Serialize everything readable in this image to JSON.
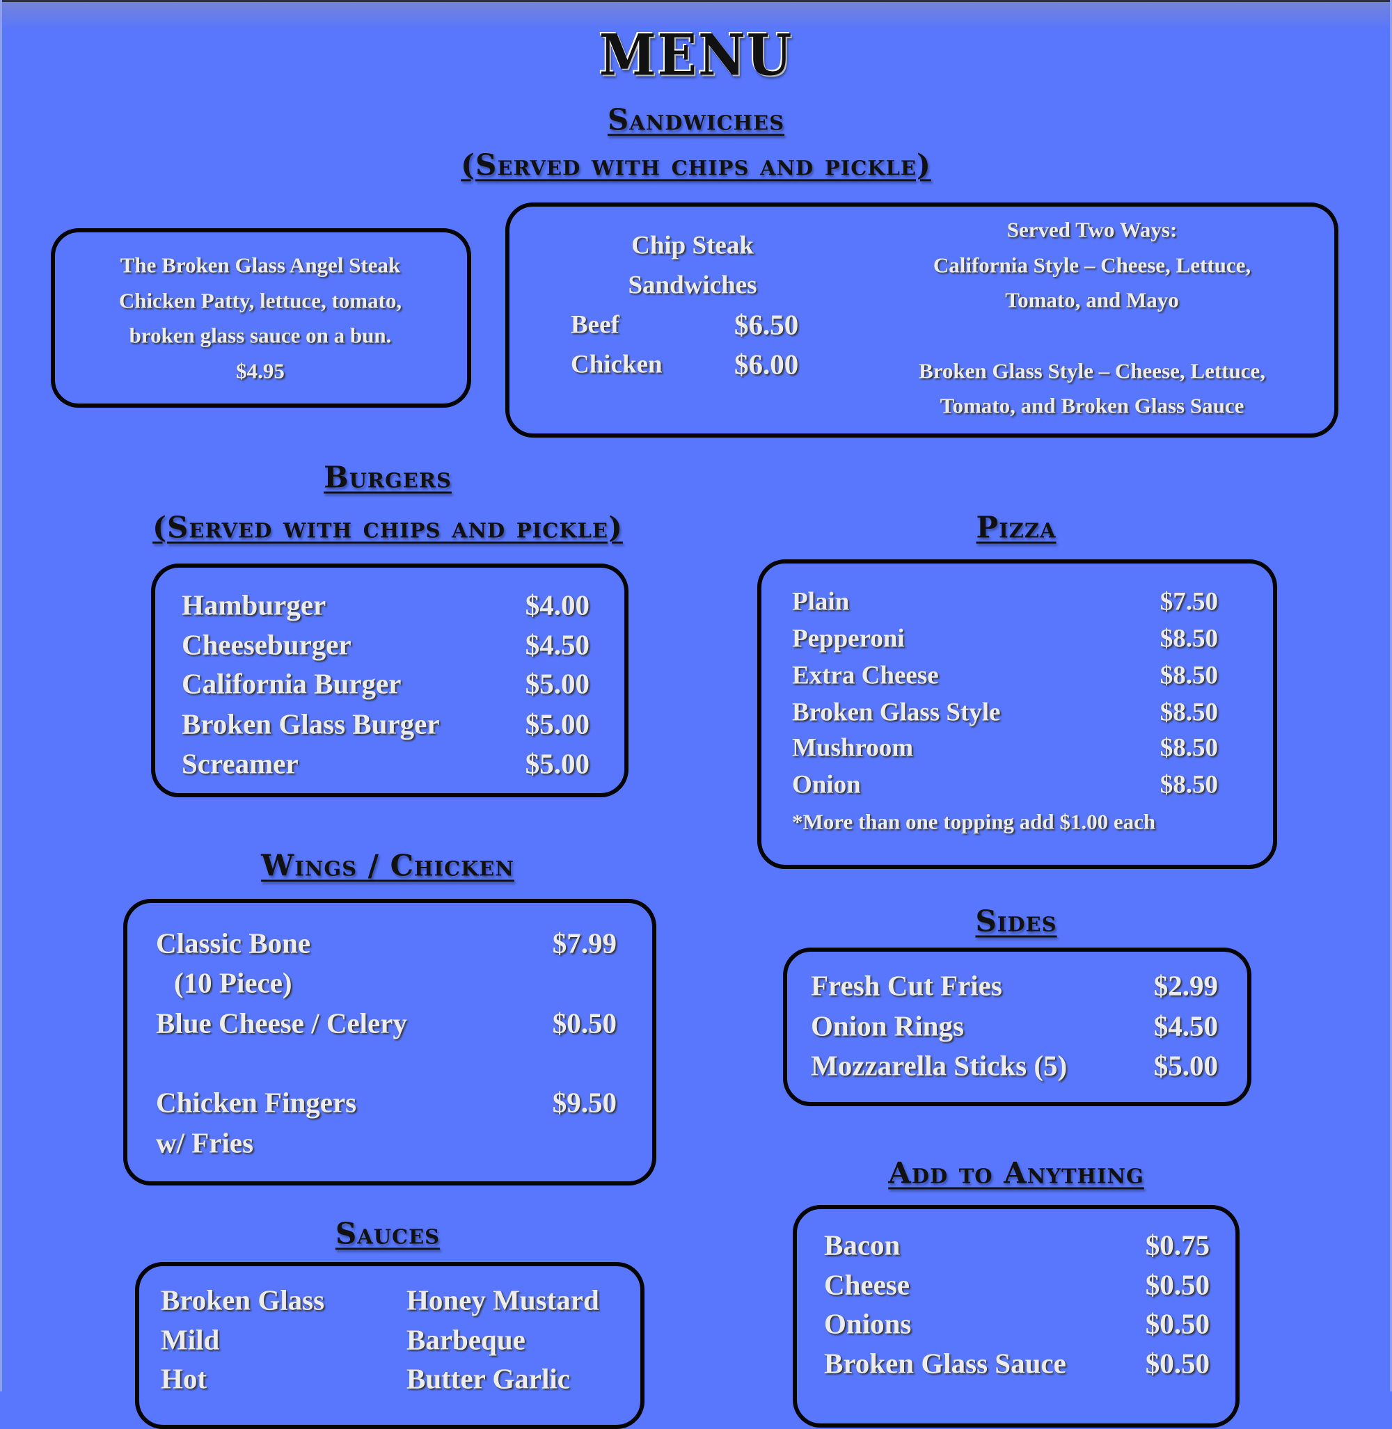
{
  "title": "MENU",
  "sandwiches": {
    "heading": "Sandwiches",
    "subheading": "(Served with chips and pickle)",
    "angel": [
      "The Broken Glass Angel Steak",
      "Chicken Patty, lettuce, tomato,",
      "broken glass sauce on a bun.",
      "$4.95"
    ],
    "chip_steak": {
      "title1": "Chip Steak",
      "title2": "Sandwiches",
      "items": [
        {
          "name": "Beef",
          "price": "$6.50"
        },
        {
          "name": "Chicken",
          "price": "$6.00"
        }
      ],
      "ways": [
        "Served Two Ways:",
        "California Style – Cheese, Lettuce,",
        "Tomato, and Mayo",
        "Broken Glass Style – Cheese, Lettuce,",
        "Tomato, and Broken Glass Sauce"
      ]
    }
  },
  "burgers": {
    "heading": "Burgers",
    "subheading": "(Served with chips and pickle)",
    "items": [
      {
        "name": "Hamburger",
        "price": "$4.00"
      },
      {
        "name": "Cheeseburger",
        "price": "$4.50"
      },
      {
        "name": "California Burger",
        "price": "$5.00"
      },
      {
        "name": "Broken Glass Burger",
        "price": "$5.00"
      },
      {
        "name": "Screamer",
        "price": "$5.00"
      }
    ]
  },
  "pizza": {
    "heading": "Pizza",
    "items": [
      {
        "name": "Plain",
        "price": "$7.50"
      },
      {
        "name": "Pepperoni",
        "price": "$8.50"
      },
      {
        "name": "Extra Cheese",
        "price": "$8.50"
      },
      {
        "name": "Broken Glass Style",
        "price": "$8.50"
      },
      {
        "name": "Mushroom",
        "price": "$8.50"
      },
      {
        "name": "Onion",
        "price": "$8.50"
      }
    ],
    "note": "*More than one topping add $1.00 each"
  },
  "wings": {
    "heading": "Wings / Chicken",
    "items": [
      {
        "name": "Classic Bone",
        "sub": "(10 Piece)",
        "price": "$7.99"
      },
      {
        "name": "Blue Cheese / Celery",
        "price": "$0.50"
      },
      {
        "name": "Chicken Fingers",
        "sub": "w/ Fries",
        "price": "$9.50"
      }
    ]
  },
  "sides": {
    "heading": "Sides",
    "items": [
      {
        "name": "Fresh Cut Fries",
        "price": "$2.99"
      },
      {
        "name": "Onion Rings",
        "price": "$4.50"
      },
      {
        "name": "Mozzarella Sticks (5)",
        "price": "$5.00"
      }
    ]
  },
  "add": {
    "heading": "Add to Anything",
    "items": [
      {
        "name": "Bacon",
        "price": "$0.75"
      },
      {
        "name": "Cheese",
        "price": "$0.50"
      },
      {
        "name": "Onions",
        "price": "$0.50"
      },
      {
        "name": "Broken Glass Sauce",
        "price": "$0.50"
      }
    ]
  },
  "sauces": {
    "heading": "Sauces",
    "col1": [
      "Broken Glass",
      "Mild",
      "Hot"
    ],
    "col2": [
      "Honey Mustard",
      "Barbeque",
      "Butter Garlic"
    ]
  },
  "colors": {
    "background": "#5877fc",
    "text": "#ececec",
    "heading": "#111111",
    "border": "#050505"
  }
}
